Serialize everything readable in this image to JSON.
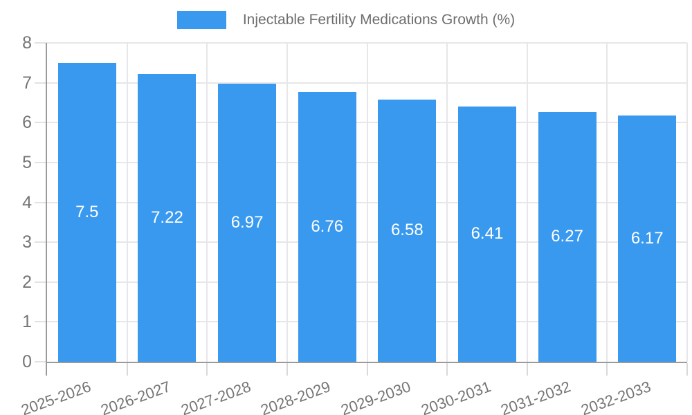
{
  "chart_data": {
    "type": "bar",
    "title": "Injectable Fertility Medications Growth (%)",
    "categories": [
      "2025-2026",
      "2026-2027",
      "2027-2028",
      "2028-2029",
      "2029-2030",
      "2030-2031",
      "2031-2032",
      "2032-2033"
    ],
    "values": [
      7.5,
      7.22,
      6.97,
      6.76,
      6.58,
      6.41,
      6.27,
      6.17
    ],
    "value_labels": [
      "7.5",
      "7.22",
      "6.97",
      "6.76",
      "6.58",
      "6.41",
      "6.27",
      "6.17"
    ],
    "xlabel": "",
    "ylabel": "",
    "ylim": [
      0,
      8
    ],
    "yticks": [
      0,
      1,
      2,
      3,
      4,
      5,
      6,
      7,
      8
    ],
    "grid": true,
    "legend_position": "top",
    "colors": {
      "bar": "#3999ee",
      "bar_label": "#ffffff",
      "axis": "#9a9a9a",
      "grid": "#e7e7e9",
      "tick_text": "#757575",
      "legend_text": "#6e6e6e",
      "background": "#ffffff"
    }
  }
}
